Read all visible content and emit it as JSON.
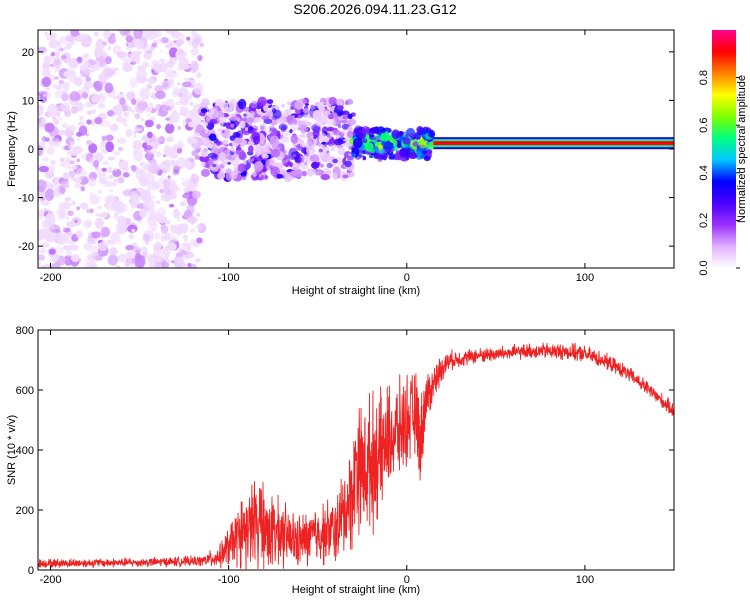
{
  "title": "S206.2026.094.11.23.G12",
  "chart_data": [
    {
      "type": "heatmap",
      "xlabel": "Height of straight line (km)",
      "ylabel": "Frequency (Hz)",
      "xlim": [
        -207,
        150
      ],
      "ylim": [
        -24.5,
        24.5
      ],
      "xticks": [
        -200,
        -100,
        0,
        100
      ],
      "yticks": [
        -20,
        -10,
        0,
        10,
        20
      ],
      "colorbar": {
        "label": "Normalized spectral amplitude",
        "range": [
          0,
          1
        ],
        "ticks": [
          "0.0",
          "0.2",
          "0.4",
          "0.6",
          "0.8"
        ],
        "colors": [
          "#ffffff",
          "#e0b0ff",
          "#9a30ff",
          "#4a00ff",
          "#0000ff",
          "#00c8ff",
          "#00ff80",
          "#80ff00",
          "#ffff00",
          "#ff8000",
          "#ff0000",
          "#ff0090"
        ]
      },
      "description_regions": [
        {
          "x_range": [
            -207,
            -115
          ],
          "freq_range": [
            -24.5,
            24.5
          ],
          "amplitude": [
            0.0,
            0.15
          ]
        },
        {
          "x_range": [
            -115,
            -30
          ],
          "freq_range": [
            -6,
            10
          ],
          "amplitude": [
            0.05,
            0.35
          ]
        },
        {
          "x_range": [
            -30,
            15
          ],
          "freq_range": [
            -2,
            4
          ],
          "amplitude": [
            0.2,
            0.8
          ]
        },
        {
          "x_range": [
            15,
            150
          ],
          "freq_range": [
            0.5,
            2
          ],
          "amplitude": [
            0.7,
            0.95
          ]
        }
      ],
      "ridge_freq": 1.2
    },
    {
      "type": "line",
      "xlabel": "Height of straight line (km)",
      "ylabel": "SNR (10 * v/v)",
      "xlim": [
        -207,
        150
      ],
      "ylim": [
        0,
        800
      ],
      "xticks": [
        -200,
        -100,
        0,
        100
      ],
      "yticks": [
        0,
        200,
        400,
        600,
        800
      ],
      "color": "#ee2222",
      "envelope": {
        "x": [
          -207,
          -150,
          -115,
          -105,
          -95,
          -85,
          -80,
          -70,
          -60,
          -50,
          -40,
          -30,
          -28,
          -25,
          -20,
          -15,
          -10,
          -5,
          0,
          5,
          8,
          10,
          15,
          20,
          25,
          30,
          40,
          50,
          60,
          70,
          80,
          90,
          100,
          110,
          120,
          130,
          140,
          150
        ],
        "mean": [
          22,
          25,
          30,
          45,
          110,
          160,
          140,
          110,
          95,
          120,
          130,
          260,
          380,
          330,
          360,
          380,
          440,
          460,
          500,
          520,
          420,
          560,
          620,
          680,
          700,
          705,
          715,
          720,
          725,
          730,
          730,
          728,
          720,
          700,
          670,
          630,
          580,
          530
        ],
        "noise": [
          12,
          12,
          14,
          30,
          80,
          120,
          110,
          90,
          70,
          80,
          90,
          150,
          180,
          170,
          180,
          160,
          140,
          130,
          120,
          110,
          130,
          80,
          50,
          35,
          25,
          22,
          20,
          20,
          20,
          20,
          22,
          22,
          22,
          22,
          20,
          20,
          20,
          20
        ]
      }
    }
  ]
}
